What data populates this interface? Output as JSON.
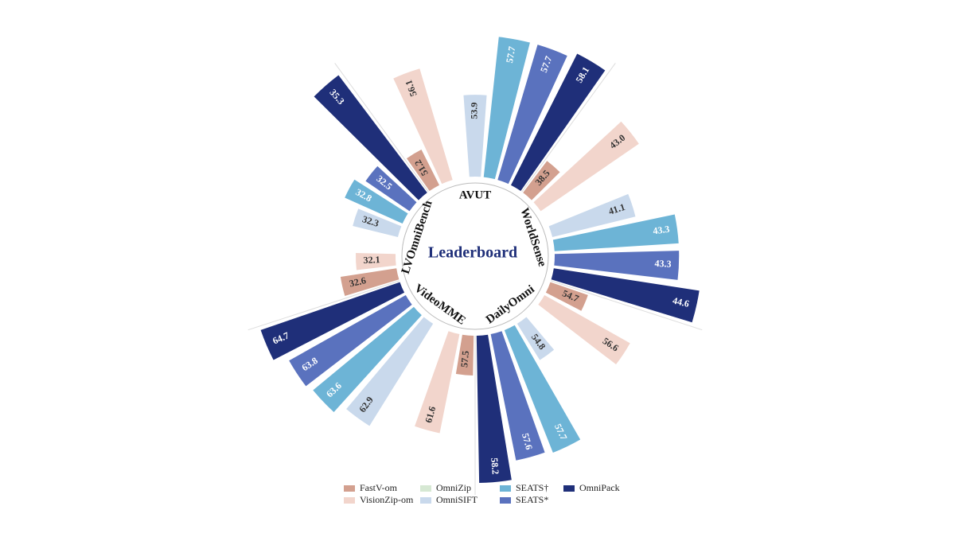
{
  "chart_data": {
    "type": "radial_bar",
    "title": "Leaderboard",
    "categories": [
      "AVUT",
      "WorldSense",
      "DailyOmni",
      "VideoMME",
      "LVOmniBench"
    ],
    "series": [
      {
        "name": "FastV-om",
        "color": "#d3a08f",
        "values": [
          51.2,
          38.5,
          54.7,
          57.5,
          32.6
        ],
        "value_labels": [
          "51.2",
          "38.5",
          "54.7",
          "57.5",
          "32.6"
        ]
      },
      {
        "name": "VisionZip-om",
        "color": "#f2d5cc",
        "values": [
          56.1,
          43.0,
          56.6,
          61.6,
          32.1
        ],
        "value_labels": [
          "56.1",
          "43.0",
          "56.6",
          "61.6",
          "32.1"
        ]
      },
      {
        "name": "OmniZip",
        "color": "#d6e8d3",
        "values": [
          null,
          null,
          null,
          null,
          null
        ],
        "value_labels": [
          null,
          null,
          null,
          null,
          null
        ]
      },
      {
        "name": "OmniSIFT",
        "color": "#c9d9ec",
        "values": [
          53.9,
          41.1,
          54.8,
          62.9,
          32.3
        ],
        "value_labels": [
          "53.9",
          "41.1",
          "54.8",
          "62.9",
          "32.3"
        ]
      },
      {
        "name": "SEATS†",
        "color": "#6db4d6",
        "values": [
          57.7,
          43.3,
          57.7,
          63.6,
          32.8
        ],
        "value_labels": [
          "57.7",
          "43.3",
          "57.7",
          "63.6",
          "32.8"
        ]
      },
      {
        "name": "SEATS*",
        "color": "#5a72be",
        "values": [
          57.7,
          43.3,
          57.6,
          63.8,
          32.5
        ],
        "value_labels": [
          "57.7",
          "43.3",
          "57.6",
          "63.8",
          "32.5"
        ]
      },
      {
        "name": "OmniPack",
        "color": "#1f2f79",
        "values": [
          58.1,
          44.6,
          58.2,
          64.7,
          35.3
        ],
        "value_labels": [
          "58.1",
          "44.6",
          "58.2",
          "64.7",
          "35.3"
        ]
      }
    ],
    "legend": "bottom"
  }
}
